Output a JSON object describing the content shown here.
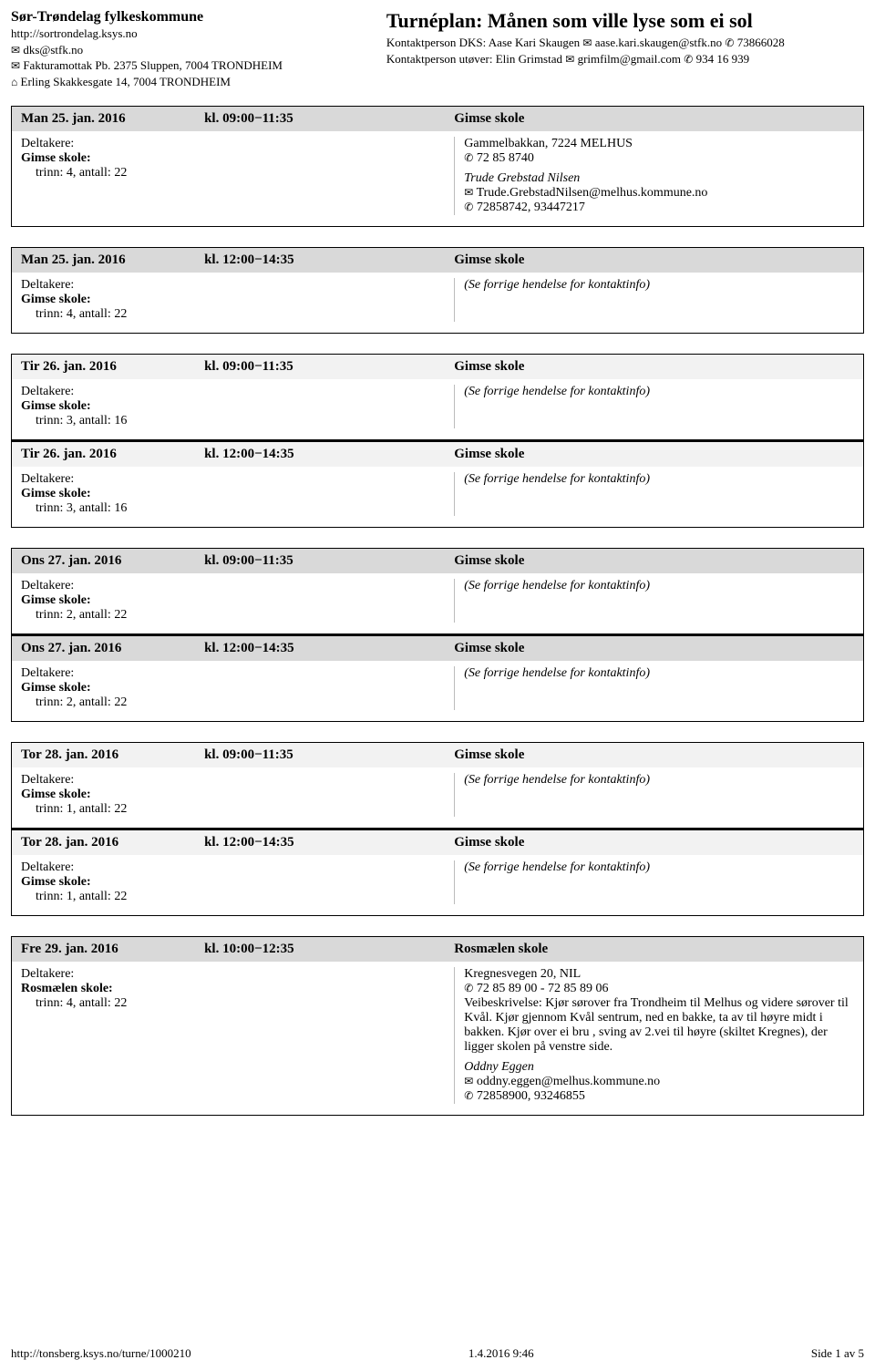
{
  "header": {
    "org": "Sør-Trøndelag fylkeskommune",
    "url": "http://sortrondelag.ksys.no",
    "email": "dks@stfk.no",
    "invoice": "Fakturamottak Pb. 2375 Sluppen, 7004 TRONDHEIM",
    "address": "Erling Skakkesgate 14, 7004 TRONDHEIM",
    "plan_title": "Turnéplan: Månen som ville lyse som ei sol",
    "contact1_label": "Kontaktperson DKS: Aase Kari Skaugen",
    "contact1_email": "aase.kari.skaugen@stfk.no",
    "contact1_phone": "73866028",
    "contact2_label": "Kontaktperson utøver: Elin Grimstad",
    "contact2_email": "grimfilm@gmail.com",
    "contact2_phone": "934 16 939"
  },
  "labels": {
    "participants": "Deltakere:",
    "see_prev": "(Se forrige hendelse for kontaktinfo)"
  },
  "groups": [
    {
      "events": [
        {
          "bg": "dark",
          "date": "Man 25. jan. 2016",
          "time": "kl. 09:00−11:35",
          "venue": "Gimse skole",
          "school": "Gimse skole:",
          "detail": "trinn: 4, antall: 22",
          "contact": {
            "addr": "Gammelbakkan, 7224 MELHUS",
            "phone": "72 85 8740",
            "person": "Trude Grebstad Nilsen",
            "email": "Trude.GrebstadNilsen@melhus.kommune.no",
            "phone2": "72858742, 93447217"
          }
        }
      ]
    },
    {
      "events": [
        {
          "bg": "dark",
          "date": "Man 25. jan. 2016",
          "time": "kl. 12:00−14:35",
          "venue": "Gimse skole",
          "school": "Gimse skole:",
          "detail": "trinn: 4, antall: 22",
          "see_prev": true
        }
      ]
    },
    {
      "events": [
        {
          "bg": "light",
          "date": "Tir 26. jan. 2016",
          "time": "kl. 09:00−11:35",
          "venue": "Gimse skole",
          "school": "Gimse skole:",
          "detail": "trinn: 3, antall: 16",
          "see_prev": true
        },
        {
          "bg": "light",
          "date": "Tir 26. jan. 2016",
          "time": "kl. 12:00−14:35",
          "venue": "Gimse skole",
          "school": "Gimse skole:",
          "detail": "trinn: 3, antall: 16",
          "see_prev": true
        }
      ]
    },
    {
      "events": [
        {
          "bg": "dark",
          "date": "Ons 27. jan. 2016",
          "time": "kl. 09:00−11:35",
          "venue": "Gimse skole",
          "school": "Gimse skole:",
          "detail": "trinn: 2, antall: 22",
          "see_prev": true
        },
        {
          "bg": "dark",
          "date": "Ons 27. jan. 2016",
          "time": "kl. 12:00−14:35",
          "venue": "Gimse skole",
          "school": "Gimse skole:",
          "detail": "trinn: 2, antall: 22",
          "see_prev": true
        }
      ]
    },
    {
      "events": [
        {
          "bg": "light",
          "date": "Tor 28. jan. 2016",
          "time": "kl. 09:00−11:35",
          "venue": "Gimse skole",
          "school": "Gimse skole:",
          "detail": "trinn: 1, antall: 22",
          "see_prev": true
        },
        {
          "bg": "light",
          "date": "Tor 28. jan. 2016",
          "time": "kl. 12:00−14:35",
          "venue": "Gimse skole",
          "school": "Gimse skole:",
          "detail": "trinn: 1, antall: 22",
          "see_prev": true
        }
      ]
    },
    {
      "events": [
        {
          "bg": "dark",
          "date": "Fre 29. jan. 2016",
          "time": "kl. 10:00−12:35",
          "venue": "Rosmælen skole",
          "school": "Rosmælen skole:",
          "detail": "trinn: 4, antall: 22",
          "contact": {
            "addr": "Kregnesvegen 20, NIL",
            "phone": "72 85 89 00 - 72 85 89 06",
            "directions": "Veibeskrivelse: Kjør sørover fra Trondheim til Melhus og videre sørover til Kvål. Kjør gjennom Kvål sentrum, ned en bakke, ta av til høyre midt i bakken. Kjør over ei bru , sving av 2.vei til høyre (skiltet Kregnes), der ligger skolen på venstre side.",
            "person": "Oddny Eggen",
            "email": "oddny.eggen@melhus.kommune.no",
            "phone2": "72858900, 93246855"
          }
        }
      ]
    }
  ],
  "footer": {
    "left": "http://tonsberg.ksys.no/turne/1000210",
    "center": "1.4.2016 9:46",
    "right": "Side 1 av 5"
  },
  "icons": {
    "mail": "✉",
    "phone": "✆",
    "home": "⌂"
  }
}
